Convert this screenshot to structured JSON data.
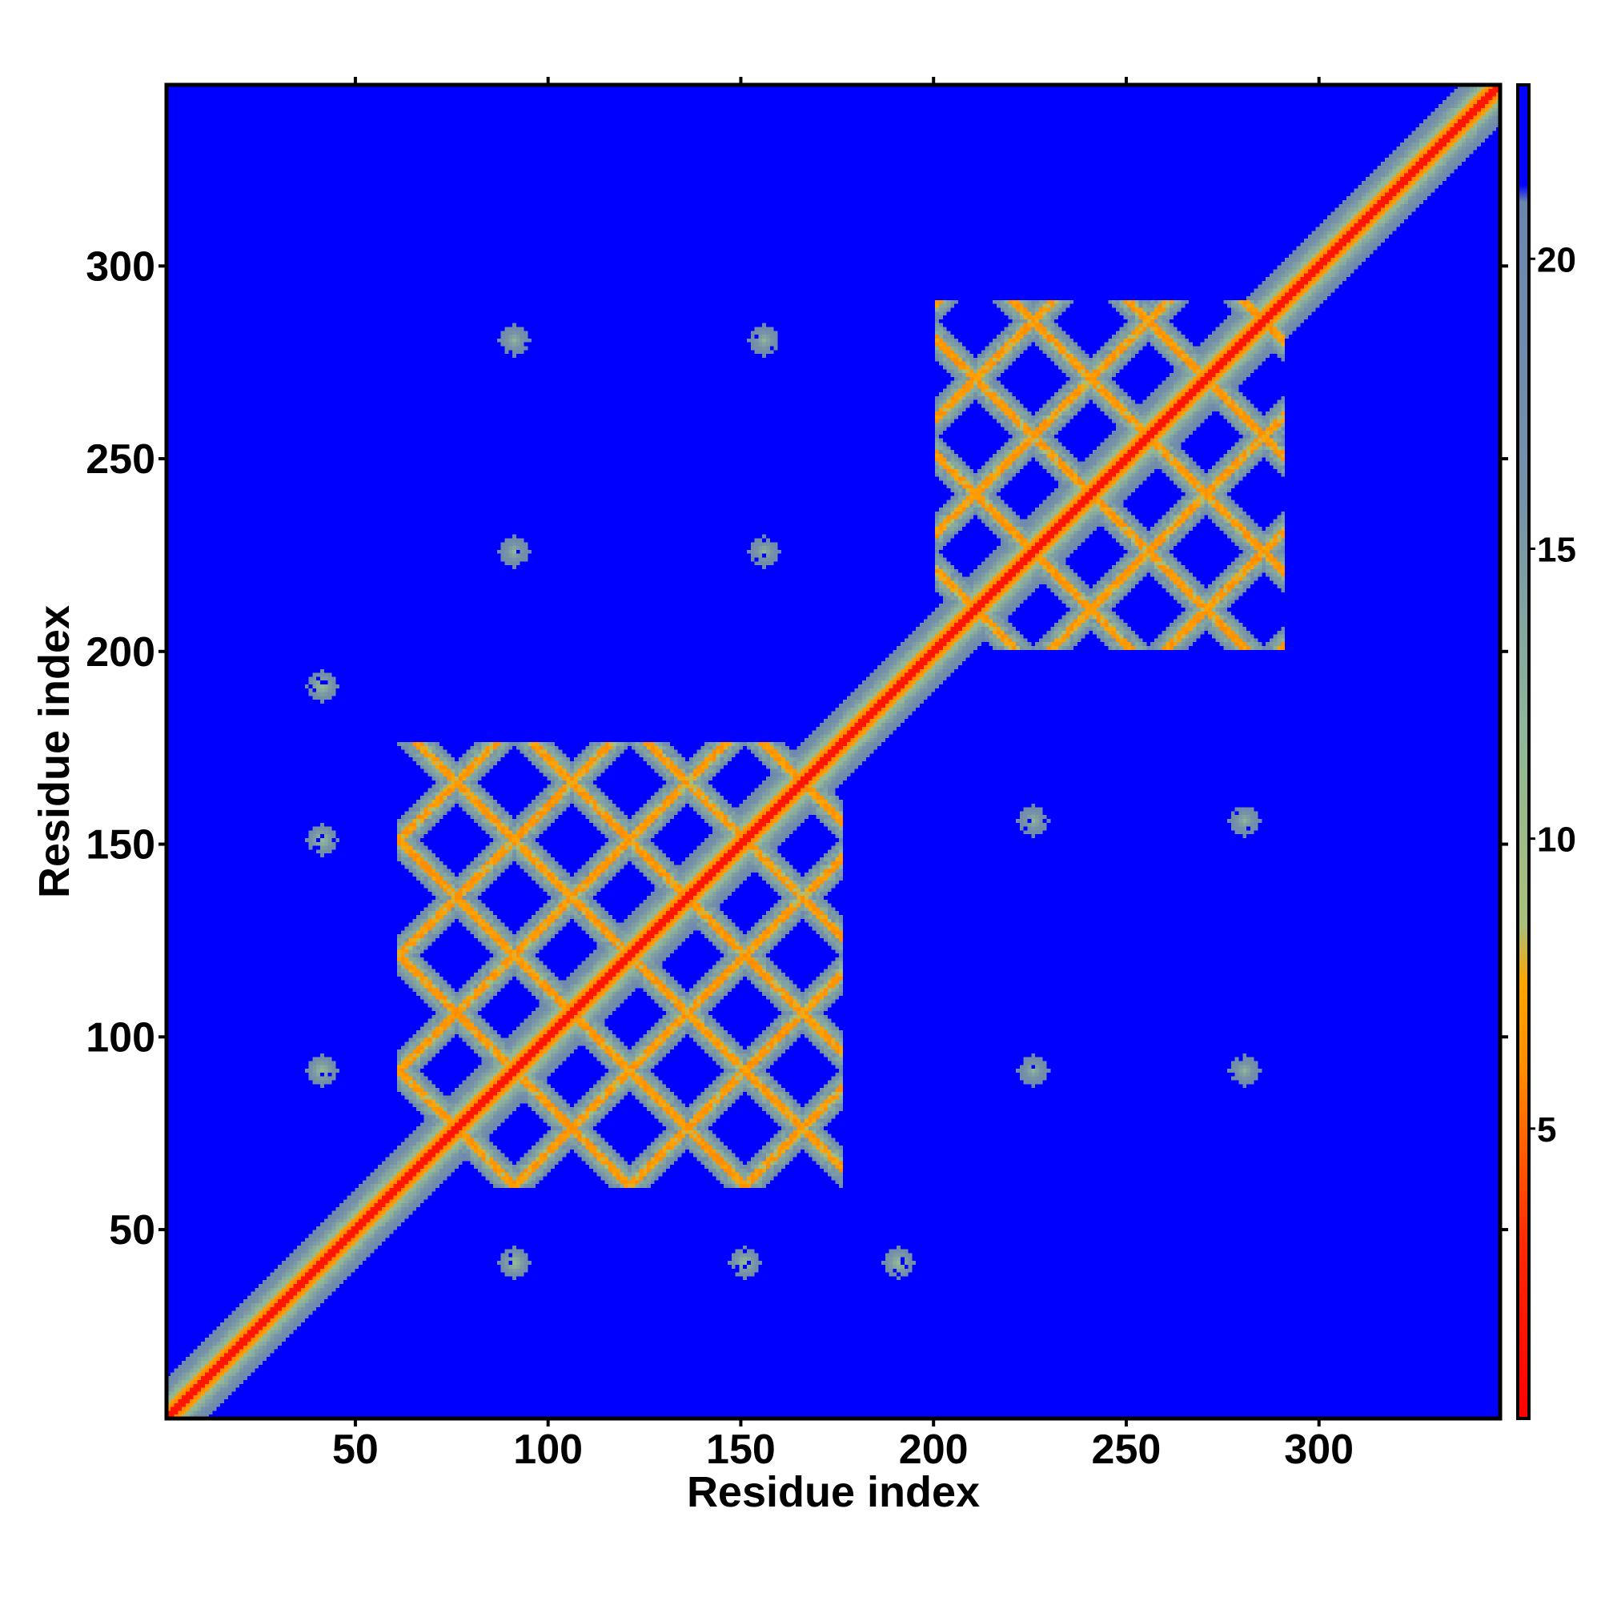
{
  "chart_data": {
    "type": "heatmap",
    "xlabel": "Residue index",
    "ylabel": "Residue index",
    "xlim": [
      1,
      347
    ],
    "ylim": [
      1,
      347
    ],
    "x_ticks": [
      50,
      100,
      150,
      200,
      250,
      300
    ],
    "y_ticks": [
      50,
      100,
      150,
      200,
      250,
      300
    ],
    "x_tick_labels": [
      "50",
      "100",
      "150",
      "200",
      "250",
      "300"
    ],
    "y_tick_labels": [
      "50",
      "100",
      "150",
      "200",
      "250",
      "300"
    ],
    "colorbar": {
      "range": [
        0,
        23
      ],
      "ticks": [
        5,
        10,
        15,
        20
      ],
      "tick_labels": [
        "5",
        "10",
        "15",
        "20"
      ],
      "stops": [
        {
          "value": 0,
          "color": "#ff0000"
        },
        {
          "value": 3,
          "color": "#ff2a00"
        },
        {
          "value": 6,
          "color": "#ff8c00"
        },
        {
          "value": 7.5,
          "color": "#ffa500"
        },
        {
          "value": 8.5,
          "color": "#a9c07a"
        },
        {
          "value": 12,
          "color": "#8fb59a"
        },
        {
          "value": 16,
          "color": "#7590a8"
        },
        {
          "value": 21,
          "color": "#6a86ae"
        },
        {
          "value": 21.3,
          "color": "#0000ff"
        },
        {
          "value": 23,
          "color": "#0000ff"
        }
      ]
    },
    "background_value": 23,
    "diagonal": {
      "start": 1,
      "end": 347,
      "core_value": 1.5,
      "halo_value": 10
    },
    "domains": [
      {
        "name": "",
        "x_range": [
          60,
          175
        ],
        "y_range": [
          60,
          175
        ],
        "lattice_period": 30
      },
      {
        "name": "",
        "x_range": [
          200,
          290
        ],
        "y_range": [
          200,
          290
        ],
        "lattice_period": 30
      }
    ],
    "secondary_contacts": [
      {
        "x": 90,
        "y": 40,
        "value": 11
      },
      {
        "x": 150,
        "y": 40,
        "value": 11
      },
      {
        "x": 190,
        "y": 40,
        "value": 11
      },
      {
        "x": 40,
        "y": 90,
        "value": 11
      },
      {
        "x": 40,
        "y": 150,
        "value": 11
      },
      {
        "x": 40,
        "y": 190,
        "value": 11
      },
      {
        "x": 225,
        "y": 90,
        "value": 12
      },
      {
        "x": 280,
        "y": 90,
        "value": 12
      },
      {
        "x": 225,
        "y": 155,
        "value": 12
      },
      {
        "x": 280,
        "y": 155,
        "value": 12
      },
      {
        "x": 90,
        "y": 225,
        "value": 12
      },
      {
        "x": 90,
        "y": 280,
        "value": 12
      },
      {
        "x": 155,
        "y": 225,
        "value": 12
      },
      {
        "x": 155,
        "y": 280,
        "value": 12
      }
    ]
  }
}
